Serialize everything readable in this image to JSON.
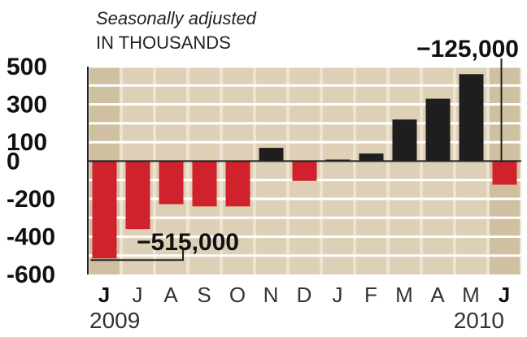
{
  "chart_data": {
    "type": "bar",
    "subtitle": "Seasonally adjusted",
    "unit_label": "IN THOUSANDS",
    "categories": [
      "J",
      "J",
      "A",
      "S",
      "O",
      "N",
      "D",
      "J",
      "F",
      "M",
      "A",
      "M",
      "J"
    ],
    "bold_categories": [
      0,
      12
    ],
    "years": [
      "2009",
      "2010"
    ],
    "values": [
      -515,
      -360,
      -228,
      -240,
      -240,
      70,
      -105,
      8,
      40,
      220,
      330,
      460,
      -125
    ],
    "ylim": [
      -600,
      500
    ],
    "yticks": [
      500,
      300,
      100,
      0,
      -200,
      -400,
      -600
    ],
    "ytick_labels": [
      "500",
      "300",
      "100",
      "0",
      "-200",
      "-400",
      "-600"
    ],
    "annotations": [
      {
        "text": "−515,000",
        "bar_index": 0
      },
      {
        "text": "−125,000",
        "bar_index": 12
      }
    ],
    "colors": {
      "negative": "#d0222d",
      "positive": "#1e1e1e",
      "plot_bg": "#ede3d0",
      "band": "#ddd0b6",
      "highlight_col": "#cfc0a2",
      "grid": "#ffffff",
      "axis": "#222222"
    }
  }
}
